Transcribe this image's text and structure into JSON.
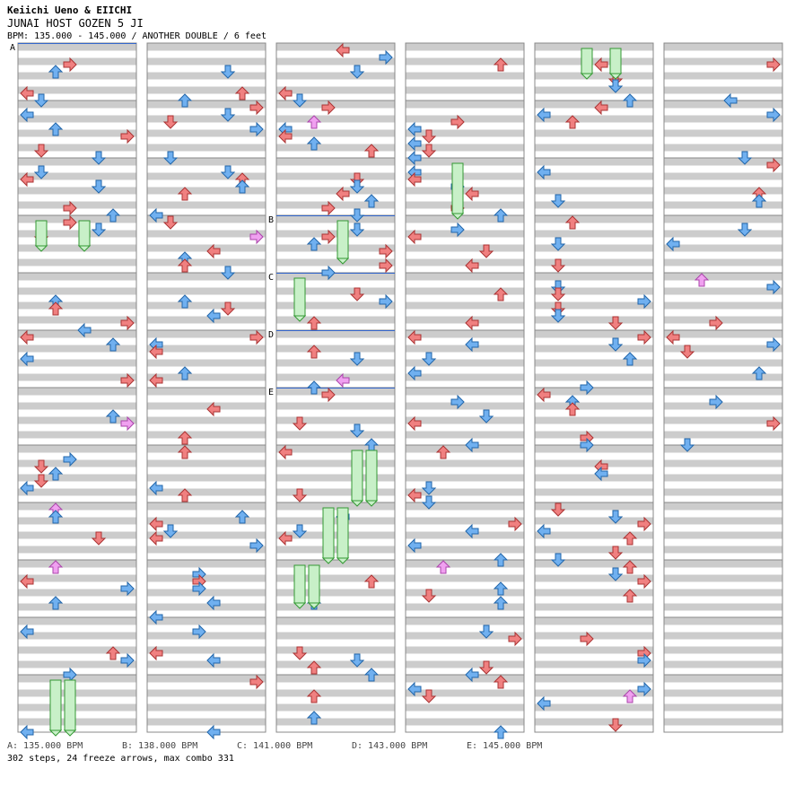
{
  "header": {
    "artist": "Keiichi Ueno & EIICHI",
    "title": "JUNAI HOST GOZEN 5 JI",
    "subline": "BPM: 135.000 - 145.000 / ANOTHER DOUBLE / 6 feet"
  },
  "colors": {
    "stripe": "#cccccc",
    "red_arrow": "#f08080",
    "blue_arrow": "#70b0f0",
    "pink_arrow": "#f0a0f0",
    "freeze": "#c8f0c8",
    "freeze_border": "#339933",
    "bpm_line": "#3366cc"
  },
  "bpm_changes": [
    {
      "label": "A",
      "bpm": "135.000"
    },
    {
      "label": "B",
      "bpm": "138.000"
    },
    {
      "label": "C",
      "bpm": "141.000"
    },
    {
      "label": "D",
      "bpm": "143.000"
    },
    {
      "label": "E",
      "bpm": "145.000"
    }
  ],
  "legend": [
    "A: 135.000 BPM",
    "B: 138.000 BPM",
    "C: 141.000 BPM",
    "D: 143.000 BPM",
    "E: 145.000 BPM"
  ],
  "summary": "302 steps, 24 freeze arrows, max combo 331",
  "measures_per_column": 12,
  "column_count": 6
}
